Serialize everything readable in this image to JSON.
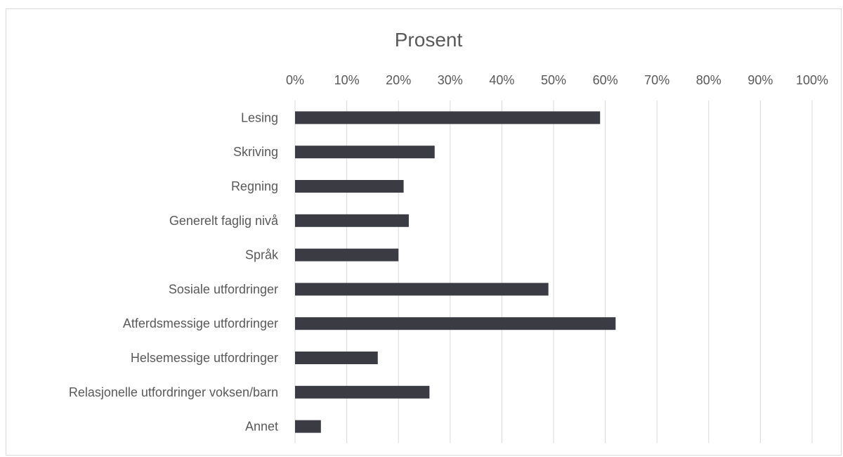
{
  "chart_data": {
    "type": "bar",
    "orientation": "horizontal",
    "title": "Prosent",
    "xlabel": "",
    "ylabel": "",
    "xlim": [
      0,
      100
    ],
    "ticks": [
      "0%",
      "10%",
      "20%",
      "30%",
      "40%",
      "50%",
      "60%",
      "70%",
      "80%",
      "90%",
      "100%"
    ],
    "tick_axis_position": "top",
    "grid": true,
    "categories": [
      "Lesing",
      "Skriving",
      "Regning",
      "Generelt faglig nivå",
      "Språk",
      "Sosiale utfordringer",
      "Atferdsmessige utfordringer",
      "Helsemessige utfordringer",
      "Relasjonelle utfordringer voksen/barn",
      "Annet"
    ],
    "values": [
      59,
      27,
      21,
      22,
      20,
      49,
      62,
      16,
      26,
      5
    ],
    "colors": {
      "bar": "#3b3b44",
      "grid": "#d9d9d9",
      "text": "#595959"
    }
  }
}
